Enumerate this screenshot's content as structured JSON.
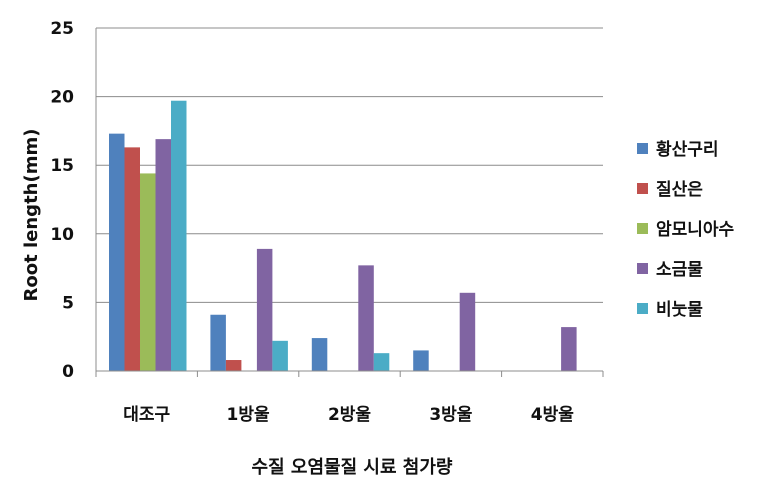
{
  "chart_data": {
    "type": "bar",
    "categories": [
      "대조구",
      "1방울",
      "2방울",
      "3방울",
      "4방울"
    ],
    "series": [
      {
        "name": "황산구리",
        "color": "#4f81bd",
        "values": [
          17.3,
          4.1,
          2.4,
          1.5,
          0
        ]
      },
      {
        "name": "질산은",
        "color": "#c0504d",
        "values": [
          16.3,
          0.8,
          0,
          0,
          0
        ]
      },
      {
        "name": "암모니아수",
        "color": "#9bbb59",
        "values": [
          14.4,
          0,
          0,
          0,
          0
        ]
      },
      {
        "name": "소금물",
        "color": "#8064a2",
        "values": [
          16.9,
          8.9,
          7.7,
          5.7,
          3.2
        ]
      },
      {
        "name": "비눗물",
        "color": "#4bacc6",
        "values": [
          19.7,
          2.2,
          1.3,
          0,
          0
        ]
      }
    ],
    "ylim": [
      0,
      25
    ],
    "yticks": [
      0,
      5,
      10,
      15,
      20,
      25
    ],
    "xlabel": "수질 오염물질 시료 첨가량",
    "ylabel": "Root length(mm)",
    "grid": true,
    "legend": "right"
  }
}
